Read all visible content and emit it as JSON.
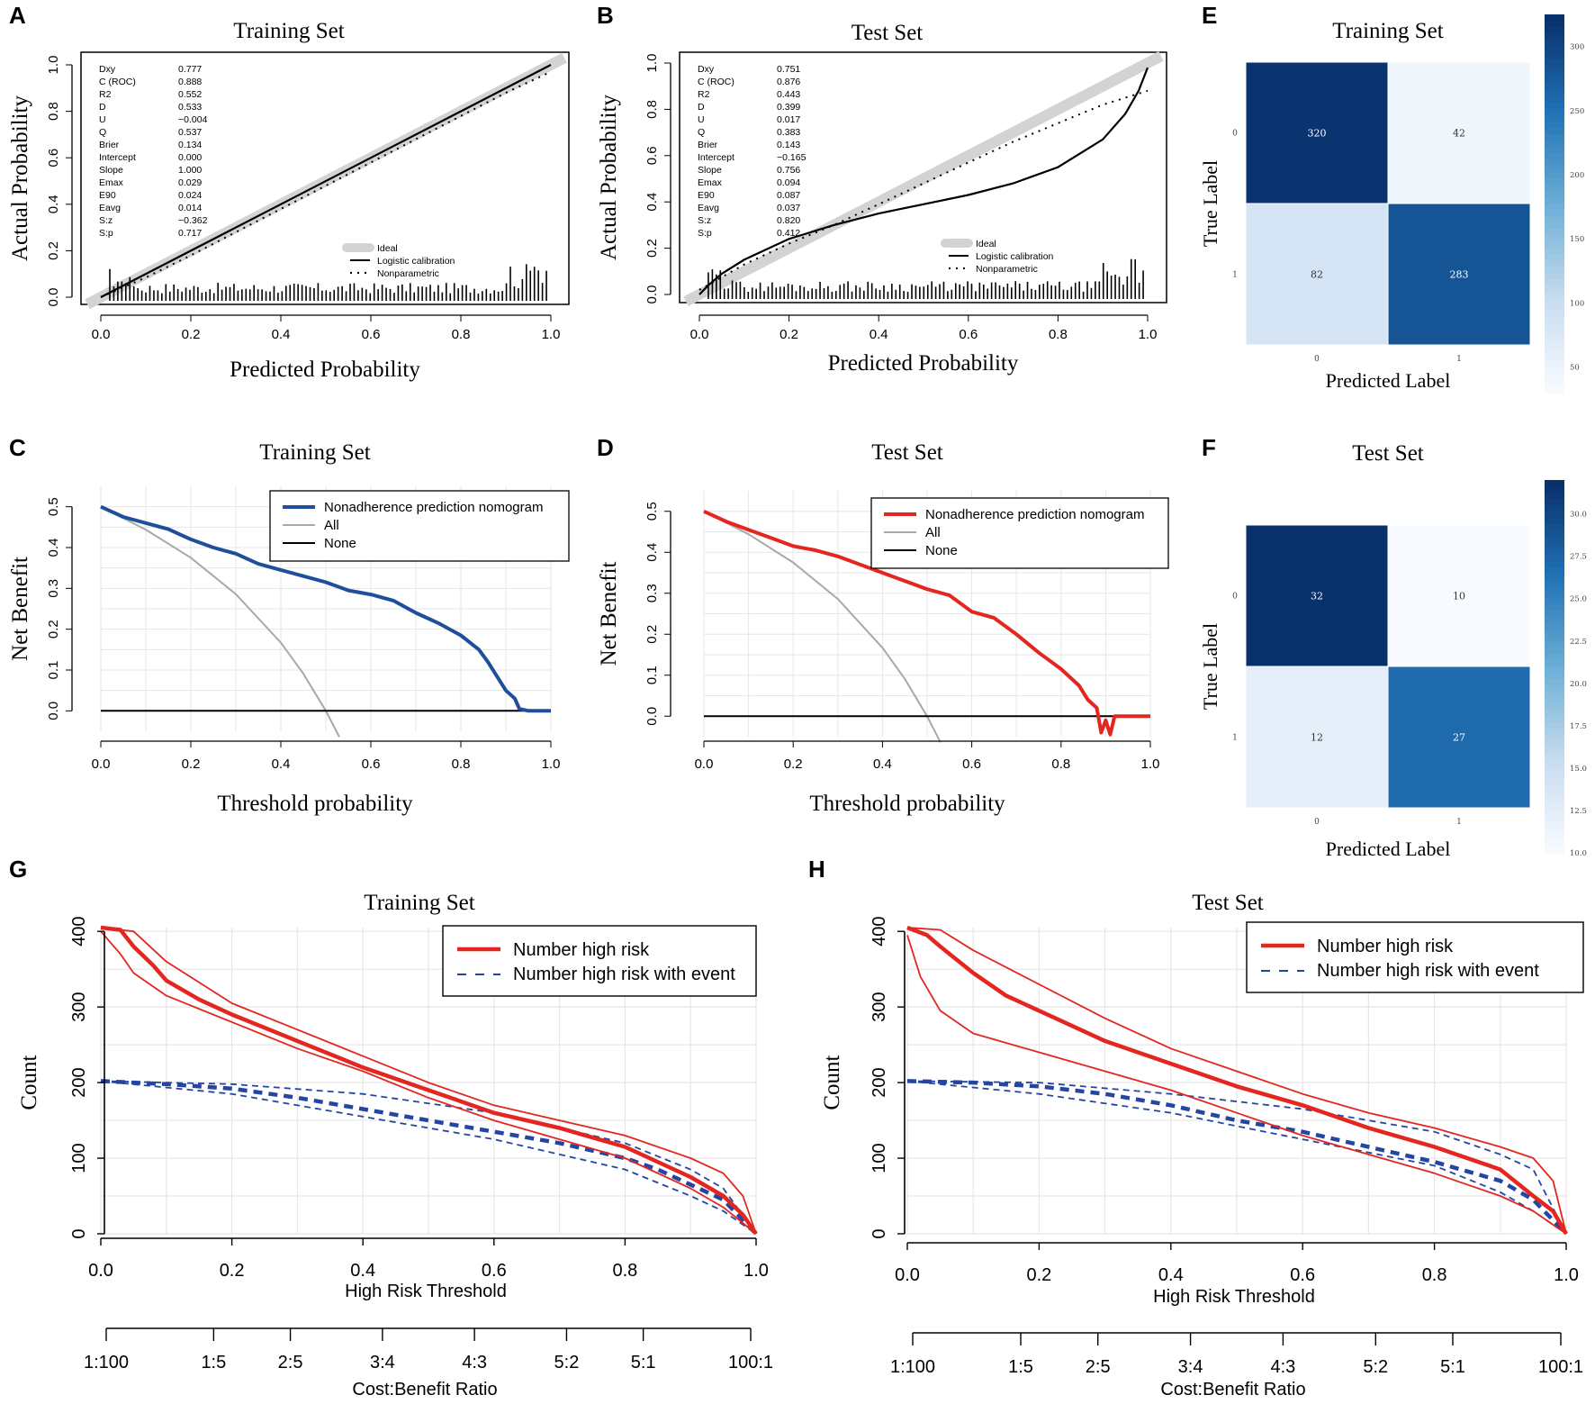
{
  "chart_data": [
    {
      "panel": "A",
      "type": "line",
      "title": "Training Set",
      "xlabel": "Predicted Probability",
      "ylabel": "Actual Probability",
      "xlim": [
        0,
        1
      ],
      "ylim": [
        0,
        1
      ],
      "xticks": [
        "0.0",
        "0.2",
        "0.4",
        "0.6",
        "0.8",
        "1.0"
      ],
      "yticks": [
        "0.0",
        "0.2",
        "0.4",
        "0.6",
        "0.8",
        "1.0"
      ],
      "stats": [
        {
          "name": "Dxy",
          "value": "0.777"
        },
        {
          "name": "C (ROC)",
          "value": "0.888"
        },
        {
          "name": "R2",
          "value": "0.552"
        },
        {
          "name": "D",
          "value": "0.533"
        },
        {
          "name": "U",
          "value": "−0.004"
        },
        {
          "name": "Q",
          "value": "0.537"
        },
        {
          "name": "Brier",
          "value": "0.134"
        },
        {
          "name": "Intercept",
          "value": "0.000"
        },
        {
          "name": "Slope",
          "value": "1.000"
        },
        {
          "name": "Emax",
          "value": "0.029"
        },
        {
          "name": "E90",
          "value": "0.024"
        },
        {
          "name": "Eavg",
          "value": "0.014"
        },
        {
          "name": "S:z",
          "value": "−0.362"
        },
        {
          "name": "S:p",
          "value": "0.717"
        }
      ],
      "legend": [
        "Ideal",
        "Logistic calibration",
        "Nonparametric"
      ],
      "series": [
        {
          "name": "Logistic calibration",
          "x": [
            0.0,
            0.2,
            0.4,
            0.6,
            0.8,
            1.0
          ],
          "y": [
            0.0,
            0.2,
            0.4,
            0.6,
            0.8,
            1.0
          ]
        },
        {
          "name": "Nonparametric",
          "x": [
            0.0,
            0.1,
            0.2,
            0.3,
            0.4,
            0.5,
            0.6,
            0.7,
            0.8,
            0.9,
            1.0
          ],
          "y": [
            0.0,
            0.085,
            0.18,
            0.28,
            0.38,
            0.48,
            0.58,
            0.68,
            0.78,
            0.88,
            0.97
          ]
        }
      ]
    },
    {
      "panel": "B",
      "type": "line",
      "title": "Test Set",
      "xlabel": "Predicted Probability",
      "ylabel": "Actual Probability",
      "xlim": [
        0,
        1
      ],
      "ylim": [
        0,
        1
      ],
      "xticks": [
        "0.0",
        "0.2",
        "0.4",
        "0.6",
        "0.8",
        "1.0"
      ],
      "yticks": [
        "0.0",
        "0.2",
        "0.4",
        "0.6",
        "0.8",
        "1.0"
      ],
      "stats": [
        {
          "name": "Dxy",
          "value": "0.751"
        },
        {
          "name": "C (ROC)",
          "value": "0.876"
        },
        {
          "name": "R2",
          "value": "0.443"
        },
        {
          "name": "D",
          "value": "0.399"
        },
        {
          "name": "U",
          "value": "0.017"
        },
        {
          "name": "Q",
          "value": "0.383"
        },
        {
          "name": "Brier",
          "value": "0.143"
        },
        {
          "name": "Intercept",
          "value": "−0.165"
        },
        {
          "name": "Slope",
          "value": "0.756"
        },
        {
          "name": "Emax",
          "value": "0.094"
        },
        {
          "name": "E90",
          "value": "0.087"
        },
        {
          "name": "Eavg",
          "value": "0.037"
        },
        {
          "name": "S:z",
          "value": "0.820"
        },
        {
          "name": "S:p",
          "value": "0.412"
        }
      ],
      "legend": [
        "Ideal",
        "Logistic calibration",
        "Nonparametric"
      ],
      "series": [
        {
          "name": "Logistic calibration",
          "x": [
            0.0,
            0.02,
            0.05,
            0.1,
            0.2,
            0.3,
            0.4,
            0.5,
            0.6,
            0.7,
            0.8,
            0.9,
            0.95,
            0.98,
            1.0
          ],
          "y": [
            0.0,
            0.04,
            0.09,
            0.15,
            0.24,
            0.3,
            0.35,
            0.39,
            0.43,
            0.48,
            0.55,
            0.67,
            0.78,
            0.88,
            0.98
          ]
        },
        {
          "name": "Nonparametric",
          "x": [
            0.0,
            0.1,
            0.2,
            0.3,
            0.4,
            0.5,
            0.6,
            0.7,
            0.8,
            0.9,
            1.0
          ],
          "y": [
            0.02,
            0.13,
            0.22,
            0.3,
            0.39,
            0.48,
            0.57,
            0.66,
            0.74,
            0.82,
            0.88
          ]
        }
      ]
    },
    {
      "panel": "E",
      "type": "heatmap",
      "title": "Training Set",
      "xlabel": "Predicted Label",
      "ylabel": "True Label",
      "x_labels": [
        "0",
        "1"
      ],
      "y_labels": [
        "0",
        "1"
      ],
      "values": [
        [
          320,
          42
        ],
        [
          82,
          283
        ]
      ],
      "colorbar_range": [
        30,
        325
      ],
      "colorbar_ticks": [
        "300",
        "250",
        "200",
        "150",
        "100",
        "50"
      ]
    },
    {
      "panel": "C",
      "type": "line",
      "title": "Training Set",
      "xlabel": "Threshold probability",
      "ylabel": "Net Benefit",
      "xlim": [
        0,
        1
      ],
      "ylim": [
        -0.05,
        0.55
      ],
      "xticks": [
        "0.0",
        "0.2",
        "0.4",
        "0.6",
        "0.8",
        "1.0"
      ],
      "yticks": [
        "0.0",
        "0.1",
        "0.2",
        "0.3",
        "0.4",
        "0.5"
      ],
      "legend": [
        "Nonadherence prediction nomogram",
        "All",
        "None"
      ],
      "series": [
        {
          "name": "Nonadherence prediction nomogram",
          "x": [
            0.0,
            0.05,
            0.1,
            0.15,
            0.2,
            0.25,
            0.3,
            0.35,
            0.4,
            0.45,
            0.5,
            0.55,
            0.6,
            0.65,
            0.7,
            0.75,
            0.8,
            0.84,
            0.86,
            0.88,
            0.9,
            0.92,
            0.93,
            0.95,
            1.0
          ],
          "y": [
            0.5,
            0.475,
            0.46,
            0.445,
            0.42,
            0.4,
            0.385,
            0.36,
            0.345,
            0.33,
            0.315,
            0.295,
            0.285,
            0.27,
            0.24,
            0.215,
            0.185,
            0.15,
            0.12,
            0.085,
            0.05,
            0.03,
            0.005,
            0.0,
            0.0
          ]
        },
        {
          "name": "All",
          "x": [
            0.0,
            0.1,
            0.2,
            0.3,
            0.4,
            0.45,
            0.5,
            0.53
          ],
          "y": [
            0.5,
            0.444,
            0.375,
            0.286,
            0.167,
            0.091,
            0.0,
            -0.064
          ]
        },
        {
          "name": "None",
          "x": [
            0.0,
            0.99
          ],
          "y": [
            0.0,
            0.0
          ]
        }
      ]
    },
    {
      "panel": "D",
      "type": "line",
      "title": "Test Set",
      "xlabel": "Threshold probability",
      "ylabel": "Net Benefit",
      "xlim": [
        0,
        1
      ],
      "ylim": [
        -0.05,
        0.55
      ],
      "xticks": [
        "0.0",
        "0.2",
        "0.4",
        "0.6",
        "0.8",
        "1.0"
      ],
      "yticks": [
        "0.0",
        "0.1",
        "0.2",
        "0.3",
        "0.4",
        "0.5"
      ],
      "legend": [
        "Nonadherence prediction nomogram",
        "All",
        "None"
      ],
      "series": [
        {
          "name": "Nonadherence prediction nomogram",
          "x": [
            0.0,
            0.05,
            0.1,
            0.15,
            0.2,
            0.25,
            0.3,
            0.35,
            0.4,
            0.45,
            0.5,
            0.55,
            0.6,
            0.65,
            0.7,
            0.75,
            0.8,
            0.84,
            0.86,
            0.88,
            0.89,
            0.9,
            0.91,
            0.92,
            0.94,
            1.0
          ],
          "y": [
            0.5,
            0.475,
            0.455,
            0.435,
            0.415,
            0.405,
            0.39,
            0.37,
            0.35,
            0.33,
            0.31,
            0.295,
            0.255,
            0.24,
            0.2,
            0.155,
            0.115,
            0.075,
            0.04,
            0.02,
            -0.04,
            -0.01,
            -0.045,
            0.0,
            0.0,
            0.0
          ]
        },
        {
          "name": "All",
          "x": [
            0.0,
            0.1,
            0.2,
            0.3,
            0.4,
            0.45,
            0.5,
            0.53
          ],
          "y": [
            0.5,
            0.444,
            0.375,
            0.286,
            0.167,
            0.091,
            0.0,
            -0.064
          ]
        },
        {
          "name": "None",
          "x": [
            0.0,
            0.99
          ],
          "y": [
            0.0,
            0.0
          ]
        }
      ]
    },
    {
      "panel": "F",
      "type": "heatmap",
      "title": "Test Set",
      "xlabel": "Predicted Label",
      "ylabel": "True Label",
      "x_labels": [
        "0",
        "1"
      ],
      "y_labels": [
        "0",
        "1"
      ],
      "values": [
        [
          32,
          10
        ],
        [
          12,
          27
        ]
      ],
      "colorbar_range": [
        10,
        32
      ],
      "colorbar_ticks": [
        "30.0",
        "27.5",
        "25.0",
        "22.5",
        "20.0",
        "17.5",
        "15.0",
        "12.5",
        "10.0"
      ]
    },
    {
      "panel": "G",
      "type": "line",
      "title": "Training Set",
      "xlabel": "High Risk Threshold",
      "ylabel": "Count",
      "xlim": [
        0,
        1
      ],
      "ylim": [
        0,
        405
      ],
      "xticks": [
        "0.0",
        "0.2",
        "0.4",
        "0.6",
        "0.8",
        "1.0"
      ],
      "yticks": [
        "0",
        "100",
        "200",
        "300",
        "400"
      ],
      "cost_benefit_label": "Cost:Benefit Ratio",
      "cost_benefit_ticks": [
        "1:100",
        "1:5",
        "2:5",
        "3:4",
        "4:3",
        "5:2",
        "5:1",
        "100:1"
      ],
      "legend": [
        "Number high risk",
        "Number high risk with event"
      ],
      "series": [
        {
          "name": "Number high risk",
          "x": [
            0.0,
            0.03,
            0.05,
            0.08,
            0.1,
            0.15,
            0.2,
            0.3,
            0.4,
            0.5,
            0.6,
            0.7,
            0.8,
            0.9,
            0.95,
            0.98,
            1.0
          ],
          "y": [
            405,
            402,
            380,
            355,
            335,
            310,
            290,
            255,
            220,
            190,
            160,
            140,
            115,
            75,
            50,
            25,
            0
          ]
        },
        {
          "name": "Number high risk upper",
          "x": [
            0.0,
            0.05,
            0.1,
            0.2,
            0.3,
            0.4,
            0.5,
            0.6,
            0.7,
            0.8,
            0.9,
            0.95,
            0.98,
            1.0
          ],
          "y": [
            405,
            400,
            360,
            305,
            270,
            235,
            200,
            170,
            150,
            130,
            100,
            80,
            50,
            0
          ]
        },
        {
          "name": "Number high risk lower",
          "x": [
            0.0,
            0.03,
            0.05,
            0.1,
            0.2,
            0.3,
            0.4,
            0.5,
            0.6,
            0.7,
            0.8,
            0.9,
            0.95,
            1.0
          ],
          "y": [
            400,
            370,
            345,
            315,
            280,
            245,
            215,
            180,
            150,
            125,
            100,
            60,
            35,
            0
          ]
        },
        {
          "name": "Number high risk with event",
          "x": [
            0.0,
            0.1,
            0.2,
            0.3,
            0.4,
            0.5,
            0.6,
            0.7,
            0.8,
            0.85,
            0.9,
            0.95,
            1.0
          ],
          "y": [
            202,
            198,
            192,
            180,
            165,
            150,
            135,
            120,
            100,
            85,
            65,
            45,
            0
          ]
        },
        {
          "name": "Number high risk with event upper",
          "x": [
            0.0,
            0.2,
            0.4,
            0.6,
            0.8,
            0.9,
            0.95,
            1.0
          ],
          "y": [
            202,
            198,
            185,
            160,
            120,
            85,
            60,
            0
          ]
        },
        {
          "name": "Number high risk with event lower",
          "x": [
            0.0,
            0.2,
            0.4,
            0.6,
            0.8,
            0.9,
            0.95,
            1.0
          ],
          "y": [
            202,
            185,
            155,
            125,
            85,
            50,
            30,
            0
          ]
        }
      ]
    },
    {
      "panel": "H",
      "type": "line",
      "title": "Test Set",
      "xlabel": "High Risk Threshold",
      "ylabel": "Count",
      "xlim": [
        0,
        1
      ],
      "ylim": [
        0,
        405
      ],
      "xticks": [
        "0.0",
        "0.2",
        "0.4",
        "0.6",
        "0.8",
        "1.0"
      ],
      "yticks": [
        "0",
        "100",
        "200",
        "300",
        "400"
      ],
      "cost_benefit_label": "Cost:Benefit Ratio",
      "cost_benefit_ticks": [
        "1:100",
        "1:5",
        "2:5",
        "3:4",
        "4:3",
        "5:2",
        "5:1",
        "100:1"
      ],
      "legend": [
        "Number high risk",
        "Number high risk with event"
      ],
      "series": [
        {
          "name": "Number high risk",
          "x": [
            0.0,
            0.03,
            0.05,
            0.1,
            0.15,
            0.2,
            0.3,
            0.4,
            0.5,
            0.6,
            0.7,
            0.8,
            0.9,
            0.95,
            0.98,
            1.0
          ],
          "y": [
            405,
            395,
            380,
            345,
            315,
            295,
            255,
            225,
            195,
            170,
            140,
            115,
            85,
            50,
            30,
            0
          ]
        },
        {
          "name": "Number high risk upper",
          "x": [
            0.0,
            0.05,
            0.1,
            0.2,
            0.3,
            0.4,
            0.5,
            0.6,
            0.7,
            0.8,
            0.9,
            0.95,
            0.98,
            1.0
          ],
          "y": [
            405,
            402,
            375,
            330,
            285,
            245,
            215,
            185,
            160,
            140,
            115,
            100,
            70,
            0
          ]
        },
        {
          "name": "Number high risk lower",
          "x": [
            0.0,
            0.02,
            0.05,
            0.1,
            0.2,
            0.3,
            0.4,
            0.5,
            0.6,
            0.7,
            0.8,
            0.9,
            0.95,
            1.0
          ],
          "y": [
            395,
            340,
            295,
            265,
            240,
            215,
            190,
            160,
            130,
            105,
            80,
            50,
            30,
            0
          ]
        },
        {
          "name": "Number high risk with event",
          "x": [
            0.0,
            0.1,
            0.2,
            0.3,
            0.4,
            0.5,
            0.6,
            0.7,
            0.8,
            0.9,
            0.95,
            1.0
          ],
          "y": [
            202,
            200,
            195,
            185,
            170,
            150,
            135,
            115,
            95,
            70,
            45,
            0
          ]
        },
        {
          "name": "Number high risk with event upper",
          "x": [
            0.0,
            0.2,
            0.4,
            0.6,
            0.8,
            0.9,
            0.95,
            1.0
          ],
          "y": [
            202,
            200,
            185,
            165,
            135,
            105,
            85,
            0
          ]
        },
        {
          "name": "Number high risk with event lower",
          "x": [
            0.0,
            0.2,
            0.4,
            0.6,
            0.8,
            0.9,
            0.95,
            1.0
          ],
          "y": [
            202,
            185,
            160,
            125,
            90,
            55,
            30,
            0
          ]
        }
      ]
    }
  ],
  "panel_letters": [
    "A",
    "B",
    "E",
    "C",
    "D",
    "F",
    "G",
    "H"
  ],
  "colors": {
    "ideal": "#d3d3d3",
    "black": "#000000",
    "grid": "#e6e6e6",
    "all_curve": "#a8a8a8",
    "train_dca": "#1f4e9c",
    "test_dca": "#e3261f",
    "risk_red": "#e3261f",
    "risk_blue": "#2446a2",
    "cm_dark": "#08306b",
    "cm_light": "#f7fbff"
  }
}
